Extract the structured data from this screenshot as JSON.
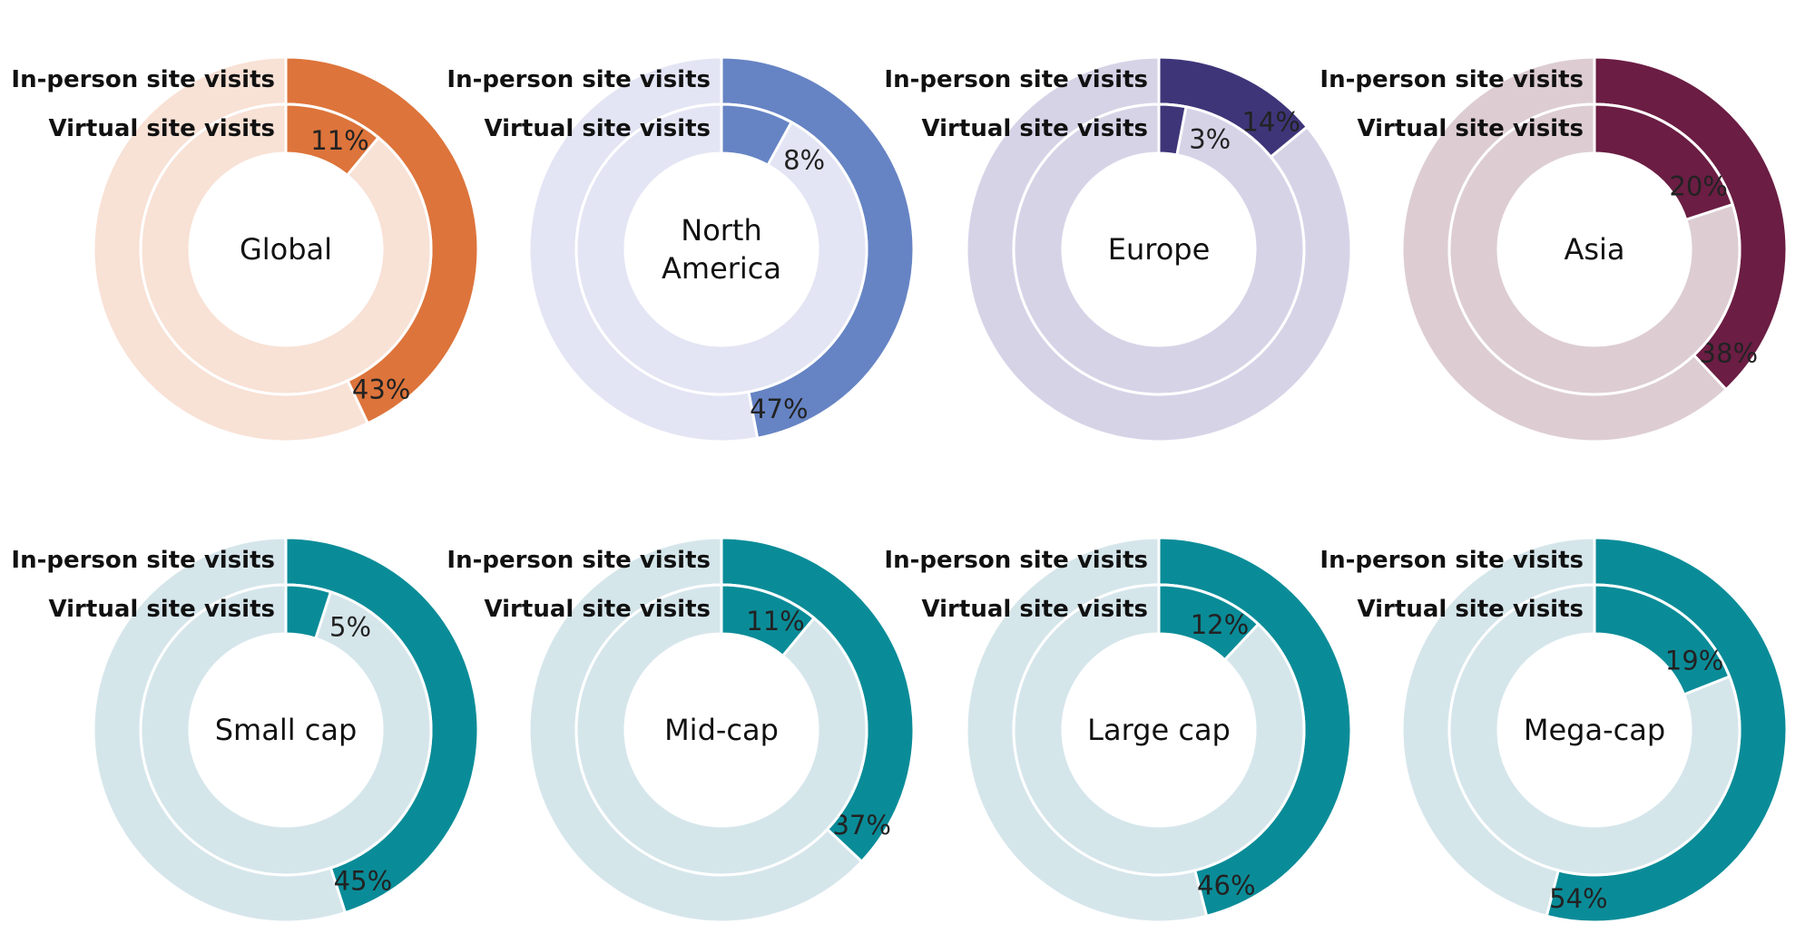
{
  "chart_data": [
    {
      "type": "pie",
      "title": "Global",
      "series": [
        {
          "name": "In-person site visits",
          "value": 43
        },
        {
          "name": "Virtual site visits",
          "value": 11
        }
      ],
      "colors": {
        "primary": "#DD743B",
        "track": "#F8E1D5"
      }
    },
    {
      "type": "pie",
      "title": "North America",
      "series": [
        {
          "name": "In-person site visits",
          "value": 47
        },
        {
          "name": "Virtual site visits",
          "value": 8
        }
      ],
      "colors": {
        "primary": "#6684C4",
        "track": "#E3E5F4"
      }
    },
    {
      "type": "pie",
      "title": "Europe",
      "series": [
        {
          "name": "In-person site visits",
          "value": 14
        },
        {
          "name": "Virtual site visits",
          "value": 3
        }
      ],
      "colors": {
        "primary": "#3E3579",
        "track": "#D7D3E7"
      }
    },
    {
      "type": "pie",
      "title": "Asia",
      "series": [
        {
          "name": "In-person site visits",
          "value": 38
        },
        {
          "name": "Virtual site visits",
          "value": 20
        }
      ],
      "colors": {
        "primary": "#6B1D43",
        "track": "#DDCDD3"
      }
    },
    {
      "type": "pie",
      "title": "Small cap",
      "series": [
        {
          "name": "In-person site visits",
          "value": 45
        },
        {
          "name": "Virtual site visits",
          "value": 5
        }
      ],
      "colors": {
        "primary": "#0A8C98",
        "track": "#D5E6EB"
      }
    },
    {
      "type": "pie",
      "title": "Mid-cap",
      "series": [
        {
          "name": "In-person site visits",
          "value": 37
        },
        {
          "name": "Virtual site visits",
          "value": 11
        }
      ],
      "colors": {
        "primary": "#0A8C98",
        "track": "#D5E6EB"
      }
    },
    {
      "type": "pie",
      "title": "Large cap",
      "series": [
        {
          "name": "In-person site visits",
          "value": 46
        },
        {
          "name": "Virtual site visits",
          "value": 12
        }
      ],
      "colors": {
        "primary": "#0A8C98",
        "track": "#D5E6EB"
      }
    },
    {
      "type": "pie",
      "title": "Mega-cap",
      "series": [
        {
          "name": "In-person site visits",
          "value": 54
        },
        {
          "name": "Virtual site visits",
          "value": 19
        }
      ],
      "colors": {
        "primary": "#0A8C98",
        "track": "#D5E6EB"
      }
    }
  ]
}
